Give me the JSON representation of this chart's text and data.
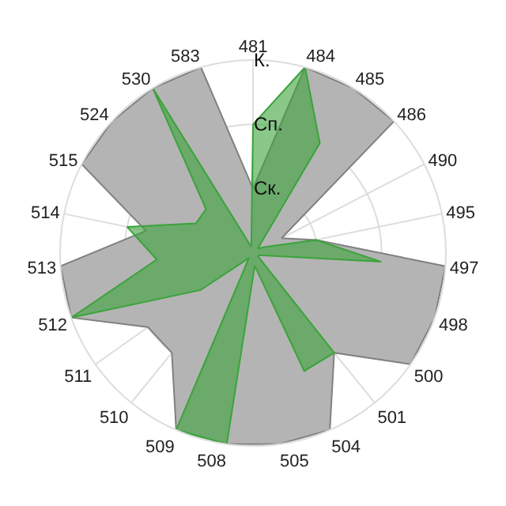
{
  "chart_data": {
    "type": "radar",
    "categories": [
      "481",
      "484",
      "485",
      "486",
      "490",
      "495",
      "497",
      "498",
      "500",
      "501",
      "504",
      "505",
      "508",
      "509",
      "510",
      "511",
      "512",
      "513",
      "514",
      "515",
      "524",
      "530",
      "583"
    ],
    "series": [
      {
        "color": "#b4b4b4",
        "values": [
          1,
          3,
          3,
          3,
          0.5,
          1,
          3,
          3,
          3,
          2,
          3,
          3,
          3,
          3,
          2,
          2,
          3,
          3,
          1.7,
          3,
          3,
          3,
          3
        ]
      },
      {
        "color": "#3aa33a",
        "values": [
          2,
          3,
          2,
          0.1,
          0.2,
          1,
          2,
          0.1,
          0.1,
          2,
          2,
          0.2,
          3,
          3,
          0.1,
          1,
          3,
          1.5,
          2,
          1,
          1,
          3,
          0.1
        ]
      }
    ],
    "ylim": [
      0,
      3
    ],
    "yticks": [
      {
        "value": 1,
        "label": "Ск."
      },
      {
        "value": 2,
        "label": "Сп."
      },
      {
        "value": 3,
        "label": "К."
      }
    ],
    "grid": true,
    "marker": "none"
  }
}
